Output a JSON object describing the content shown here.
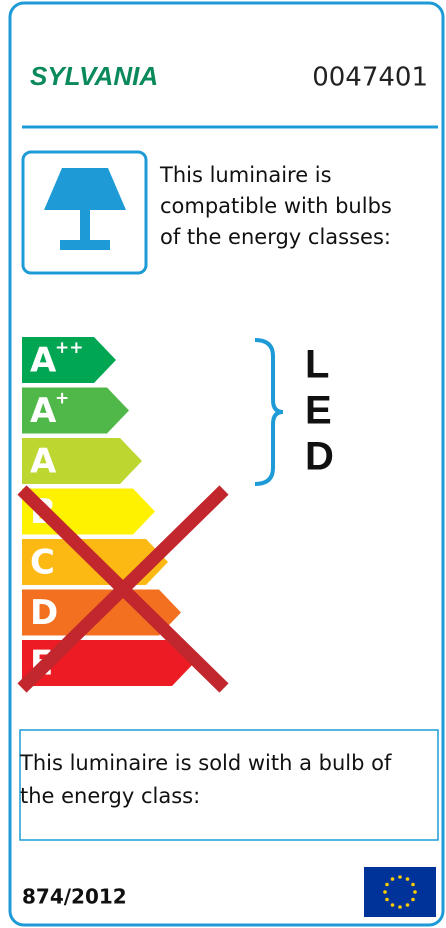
{
  "header": {
    "brand": "SYLVANIA",
    "code": "0047401"
  },
  "compatibility": {
    "lines": [
      "This luminaire is",
      "compatible with bulbs",
      "of the energy classes:"
    ]
  },
  "classes": [
    {
      "letter": "A",
      "sup": "++",
      "color": "#00a651"
    },
    {
      "letter": "A",
      "sup": "+",
      "color": "#50b848"
    },
    {
      "letter": "A",
      "color": "#bed630"
    },
    {
      "letter": "B",
      "color": "#fff200"
    },
    {
      "letter": "C",
      "color": "#fdb913"
    },
    {
      "letter": "D",
      "color": "#f37021"
    },
    {
      "letter": "E",
      "color": "#ed1c24"
    }
  ],
  "compatible_type": [
    "L",
    "E",
    "D"
  ],
  "sold_with": {
    "lines": [
      "This luminaire is sold with a bulb of",
      "the energy class:"
    ]
  },
  "footer": {
    "regulation": "874/2012"
  }
}
